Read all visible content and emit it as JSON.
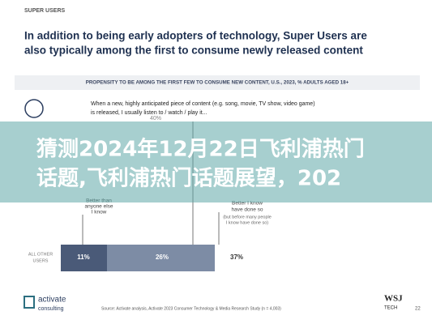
{
  "header": {
    "kicker": "SUPER USERS",
    "title_lines": [
      "In addition to being early adopters of technology, Super Users are",
      "also typically among the first to consume newly released content"
    ]
  },
  "chart": {
    "subtitle": "PROPENSITY TO BE AMONG THE FIRST FEW TO CONSUME NEW CONTENT, U.S., 2023, % ADULTS AGED 18+",
    "question_lines": [
      "When a new, highly anticipated piece of content (e.g. song, movie, TV show, video game)",
      "is released, I usually listen to / watch / play it..."
    ],
    "top_value": "40%",
    "label_a": [
      "Better than",
      "anyone else",
      "I know"
    ],
    "label_b": [
      "Better I know",
      "have done so",
      "(but before many people",
      "I know have done so)"
    ],
    "row_label": [
      "ALL OTHER",
      "USERS"
    ],
    "segments": [
      "11%",
      "26%"
    ],
    "total": "37%"
  },
  "overlay": {
    "lines": [
      "猜测2024年12月22日飞利浦热门",
      "话题,飞利浦热门话题展望，202"
    ]
  },
  "footer": {
    "logo": [
      "activate",
      "consulting"
    ],
    "source": "Source: Activate analysis, Activate 2023 Consumer Technology & Media Research Study (n = 4,003)",
    "brand": [
      "WSJ",
      "TECH"
    ],
    "page": "22"
  }
}
